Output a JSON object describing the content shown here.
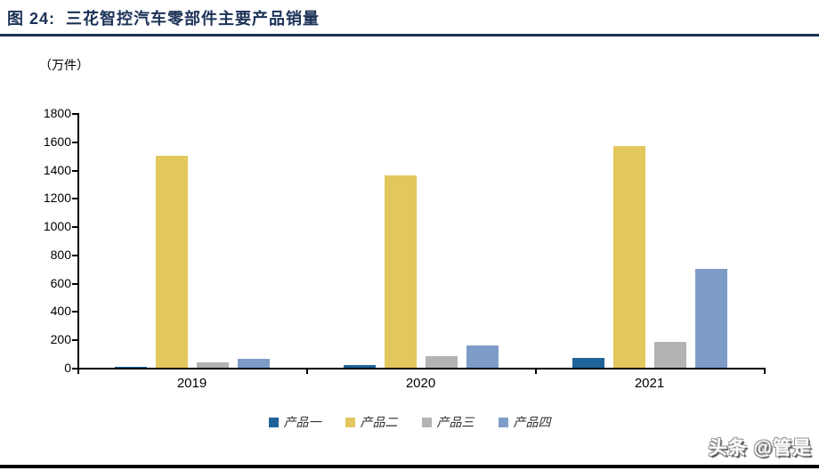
{
  "header": {
    "figure_label": "图 24:",
    "title": "三花智控汽车零部件主要产品销量"
  },
  "watermark": "头条 @管是",
  "colors": {
    "title_navy": "#1C3257",
    "axis": "#000000",
    "legend_text": "#2F2F2F"
  },
  "chart_data": {
    "type": "bar",
    "unit_label": "（万件）",
    "categories": [
      "2019",
      "2020",
      "2021"
    ],
    "series": [
      {
        "name": "产品一",
        "color": "#1F6399",
        "values": [
          8,
          20,
          70
        ]
      },
      {
        "name": "产品二",
        "color": "#E2C75C",
        "values": [
          1500,
          1360,
          1565
        ]
      },
      {
        "name": "产品三",
        "color": "#B3B3B3",
        "values": [
          38,
          80,
          180
        ]
      },
      {
        "name": "产品四",
        "color": "#7E9CC8",
        "values": [
          60,
          158,
          697
        ]
      }
    ],
    "xlabel": "",
    "ylabel": "",
    "ylim": [
      0,
      1800
    ],
    "yticks": [
      0,
      200,
      400,
      600,
      800,
      1000,
      1200,
      1400,
      1600,
      1800
    ],
    "grid": false,
    "legend_position": "bottom"
  }
}
